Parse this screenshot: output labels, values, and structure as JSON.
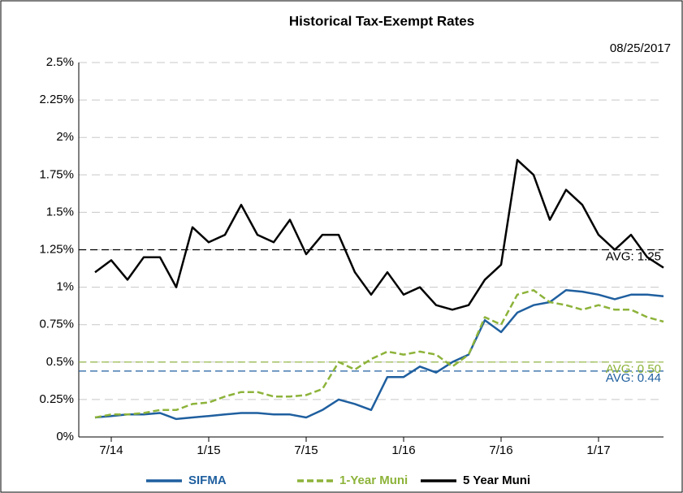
{
  "chart_data": {
    "type": "line",
    "title": "Historical Tax-Exempt Rates",
    "date_note": "08/25/2017",
    "x": [
      "2014-06",
      "2014-07",
      "2014-08",
      "2014-09",
      "2014-10",
      "2014-11",
      "2014-12",
      "2015-01",
      "2015-02",
      "2015-03",
      "2015-04",
      "2015-05",
      "2015-06",
      "2015-07",
      "2015-08",
      "2015-09",
      "2015-10",
      "2015-11",
      "2015-12",
      "2016-01",
      "2016-02",
      "2016-03",
      "2016-04",
      "2016-05",
      "2016-06",
      "2016-07",
      "2016-08",
      "2016-09",
      "2016-10",
      "2016-11",
      "2016-12",
      "2017-01",
      "2017-02",
      "2017-03",
      "2017-04",
      "2017-05"
    ],
    "series": [
      {
        "name": "SIFMA",
        "color": "#1f5f9f",
        "values": [
          0.13,
          0.14,
          0.15,
          0.15,
          0.16,
          0.12,
          0.13,
          0.14,
          0.15,
          0.16,
          0.16,
          0.15,
          0.15,
          0.13,
          0.18,
          0.25,
          0.22,
          0.18,
          0.4,
          0.4,
          0.47,
          0.43,
          0.5,
          0.55,
          0.78,
          0.7,
          0.83,
          0.88,
          0.9,
          0.98,
          0.97,
          0.95,
          0.92,
          0.95,
          0.95,
          0.94
        ]
      },
      {
        "name": "1-Year Muni",
        "color": "#8db33a",
        "dashed": true,
        "values": [
          0.13,
          0.15,
          0.15,
          0.16,
          0.18,
          0.18,
          0.22,
          0.23,
          0.27,
          0.3,
          0.3,
          0.27,
          0.27,
          0.28,
          0.32,
          0.5,
          0.45,
          0.52,
          0.57,
          0.55,
          0.57,
          0.55,
          0.47,
          0.55,
          0.8,
          0.75,
          0.95,
          0.98,
          0.9,
          0.88,
          0.85,
          0.88,
          0.85,
          0.85,
          0.8,
          0.77
        ]
      },
      {
        "name": "5 Year Muni",
        "color": "#000000",
        "values": [
          1.1,
          1.18,
          1.05,
          1.2,
          1.2,
          1.0,
          1.4,
          1.3,
          1.35,
          1.55,
          1.35,
          1.3,
          1.45,
          1.22,
          1.35,
          1.35,
          1.1,
          0.95,
          1.1,
          0.95,
          1.0,
          0.88,
          0.85,
          0.88,
          1.05,
          1.15,
          1.85,
          1.75,
          1.45,
          1.65,
          1.55,
          1.35,
          1.25,
          1.35,
          1.2,
          1.13
        ]
      }
    ],
    "reference_lines": [
      {
        "value": 1.25,
        "label": "AVG: 1.25",
        "color": "#000000"
      },
      {
        "value": 0.5,
        "label": "AVG: 0.50",
        "color": "#8db33a"
      },
      {
        "value": 0.44,
        "label": "AVG: 0.44",
        "color": "#1f5f9f"
      }
    ],
    "xlim": [
      "2014-05",
      "2017-05"
    ],
    "xticks": [
      {
        "value": "2014-07",
        "label": "7/14"
      },
      {
        "value": "2015-01",
        "label": "1/15"
      },
      {
        "value": "2015-07",
        "label": "7/15"
      },
      {
        "value": "2016-01",
        "label": "1/16"
      },
      {
        "value": "2016-07",
        "label": "7/16"
      },
      {
        "value": "2017-01",
        "label": "1/17"
      }
    ],
    "ylim": [
      0,
      2.5
    ],
    "yticks": [
      {
        "value": 0,
        "label": "0%"
      },
      {
        "value": 0.25,
        "label": "0.25%"
      },
      {
        "value": 0.5,
        "label": "0.5%"
      },
      {
        "value": 0.75,
        "label": "0.75%"
      },
      {
        "value": 1,
        "label": "1%"
      },
      {
        "value": 1.25,
        "label": "1.25%"
      },
      {
        "value": 1.5,
        "label": "1.5%"
      },
      {
        "value": 1.75,
        "label": "1.75%"
      },
      {
        "value": 2,
        "label": "2%"
      },
      {
        "value": 2.25,
        "label": "2.25%"
      },
      {
        "value": 2.5,
        "label": "2.5%"
      }
    ],
    "grid": true,
    "legend": "bottom"
  }
}
